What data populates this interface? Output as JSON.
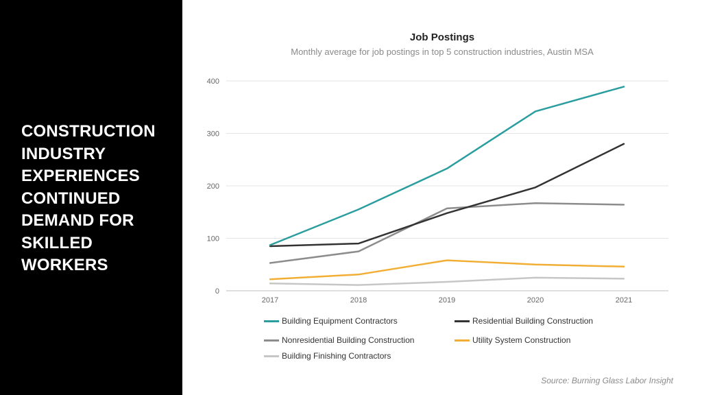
{
  "headline": "CONSTRUCTION\nINDUSTRY\nEXPERIENCES\nCONTINUED\nDEMAND FOR\nSKILLED\nWORKERS",
  "source": "Source: Burning Glass Labor Insight",
  "chart_data": {
    "type": "line",
    "title": "Job Postings",
    "subtitle": "Monthly average for job postings in top 5 construction industries, Austin MSA",
    "x": [
      "2017",
      "2018",
      "2019",
      "2020",
      "2021"
    ],
    "ylim": [
      0,
      400
    ],
    "yticks": [
      0,
      100,
      200,
      300,
      400
    ],
    "grid": true,
    "legend_position": "bottom",
    "series": [
      {
        "name": "Building Equipment Contractors",
        "color": "#2a9d9f",
        "values": [
          87,
          155,
          233,
          342,
          389
        ]
      },
      {
        "name": "Residential Building Construction",
        "color": "#333333",
        "values": [
          85,
          90,
          148,
          197,
          280
        ]
      },
      {
        "name": "Nonresidential Building Construction",
        "color": "#8c8c8c",
        "values": [
          53,
          75,
          157,
          167,
          164
        ]
      },
      {
        "name": "Utility System Construction",
        "color": "#f2ae34",
        "values": [
          22,
          31,
          58,
          50,
          46
        ]
      },
      {
        "name": "Building Finishing Contractors",
        "color": "#c6c6c6",
        "values": [
          14,
          11,
          17,
          25,
          23
        ]
      }
    ]
  }
}
